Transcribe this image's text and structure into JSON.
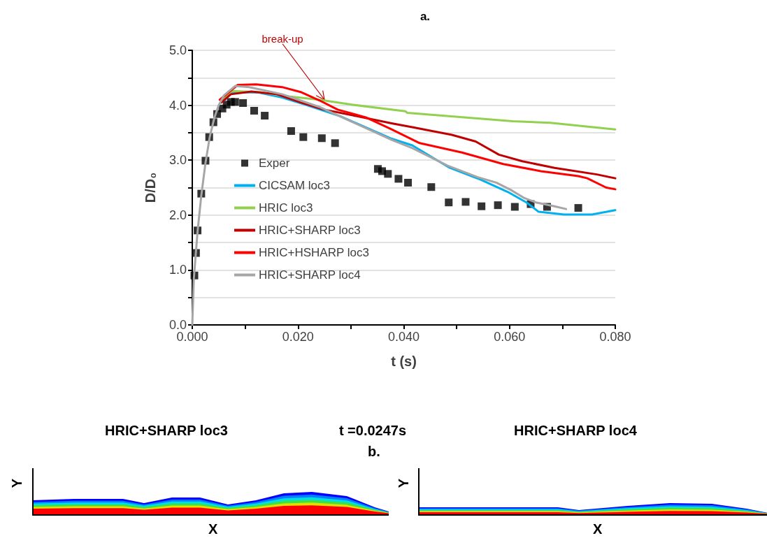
{
  "chart_data": {
    "type": "line",
    "title": "a.",
    "xlabel": "t (s)",
    "ylabel": "D/D₀",
    "xlim": [
      0,
      0.08
    ],
    "xticks": [
      {
        "value": 0,
        "label": "0.000"
      },
      {
        "value": 0.01,
        "label": null
      },
      {
        "value": 0.02,
        "label": "0.020"
      },
      {
        "value": 0.03,
        "label": null
      },
      {
        "value": 0.04,
        "label": "0.040"
      },
      {
        "value": 0.05,
        "label": null
      },
      {
        "value": 0.06,
        "label": "0.060"
      },
      {
        "value": 0.07,
        "label": null
      },
      {
        "value": 0.08,
        "label": "0.080"
      }
    ],
    "ylim": [
      0,
      5
    ],
    "yticks": [
      {
        "value": 0,
        "label": "0.0"
      },
      {
        "value": 0.5,
        "label": null
      },
      {
        "value": 1,
        "label": "1.0"
      },
      {
        "value": 1.5,
        "label": null
      },
      {
        "value": 2,
        "label": "2.0"
      },
      {
        "value": 2.5,
        "label": null
      },
      {
        "value": 3,
        "label": "3.0"
      },
      {
        "value": 3.5,
        "label": null
      },
      {
        "value": 4,
        "label": "4.0"
      },
      {
        "value": 4.5,
        "label": null
      },
      {
        "value": 5,
        "label": "5.0"
      }
    ],
    "grid": "y",
    "legend": "left",
    "marker": "none",
    "line_style": "solid",
    "series": [
      {
        "name": "Exper",
        "type": "scatter",
        "marker": "square",
        "color": "#000000",
        "x": [
          0.0004,
          0.0007,
          0.001,
          0.0017,
          0.0025,
          0.0032,
          0.004,
          0.0047,
          0.0057,
          0.0065,
          0.0073,
          0.0081,
          0.0096,
          0.0117,
          0.0137,
          0.0187,
          0.021,
          0.0245,
          0.027,
          0.0351,
          0.0359,
          0.037,
          0.039,
          0.0408,
          0.0452,
          0.0485,
          0.0517,
          0.0547,
          0.0578,
          0.061,
          0.064,
          0.0671,
          0.073
        ],
        "values": [
          0.9,
          1.31,
          1.72,
          2.39,
          2.99,
          3.42,
          3.69,
          3.84,
          3.94,
          4.01,
          4.06,
          4.06,
          4.04,
          3.9,
          3.81,
          3.53,
          3.42,
          3.4,
          3.31,
          2.84,
          2.8,
          2.75,
          2.66,
          2.59,
          2.51,
          2.23,
          2.24,
          2.16,
          2.18,
          2.15,
          2.2,
          2.15,
          2.13
        ]
      },
      {
        "name": "CICSAM loc3",
        "color": "#00b0f0",
        "x": [
          0.0062,
          0.0075,
          0.0126,
          0.017,
          0.0214,
          0.028,
          0.0377,
          0.0416,
          0.0487,
          0.0544,
          0.0597,
          0.0632,
          0.0655,
          0.0703,
          0.0756,
          0.08
        ],
        "values": [
          4.1,
          4.24,
          4.23,
          4.14,
          4.01,
          3.8,
          3.39,
          3.27,
          2.86,
          2.65,
          2.42,
          2.23,
          2.06,
          2.01,
          2.01,
          2.09
        ]
      },
      {
        "name": "HRIC loc3",
        "color": "#92d050",
        "x": [
          0.0058,
          0.0075,
          0.0126,
          0.0183,
          0.024,
          0.0302,
          0.0403,
          0.0407,
          0.0606,
          0.0677,
          0.08
        ],
        "values": [
          4.1,
          4.26,
          4.24,
          4.16,
          4.1,
          4.01,
          3.89,
          3.86,
          3.71,
          3.68,
          3.56
        ]
      },
      {
        "name": "HRIC+SHARP loc3",
        "color": "#c00000",
        "x": [
          0.0055,
          0.0073,
          0.0112,
          0.016,
          0.0205,
          0.0249,
          0.0302,
          0.0377,
          0.0416,
          0.0491,
          0.0536,
          0.058,
          0.0624,
          0.0685,
          0.0765,
          0.08
        ],
        "values": [
          4.05,
          4.2,
          4.25,
          4.2,
          4.05,
          3.92,
          3.82,
          3.67,
          3.6,
          3.46,
          3.34,
          3.1,
          2.98,
          2.86,
          2.74,
          2.67
        ]
      },
      {
        "name": "HRIC+HSHARP loc3",
        "color": "#ff0000",
        "x": [
          0.0052,
          0.0086,
          0.0121,
          0.017,
          0.0205,
          0.024,
          0.0275,
          0.0328,
          0.0377,
          0.043,
          0.051,
          0.0588,
          0.0659,
          0.073,
          0.0747,
          0.0783,
          0.08
        ],
        "values": [
          4.1,
          4.37,
          4.38,
          4.33,
          4.24,
          4.09,
          3.92,
          3.78,
          3.56,
          3.31,
          3.14,
          2.93,
          2.8,
          2.71,
          2.67,
          2.5,
          2.47
        ]
      },
      {
        "name": "HRIC+SHARP loc4",
        "color": "#a6a6a6",
        "x": [
          0,
          0.0003,
          0.001,
          0.0017,
          0.0025,
          0.0033,
          0.0042,
          0.005,
          0.006,
          0.0081,
          0.0108,
          0.017,
          0.024,
          0.0377,
          0.0416,
          0.0483,
          0.054,
          0.0575,
          0.0602,
          0.0628,
          0.065,
          0.0685,
          0.0707
        ],
        "values": [
          0,
          0.85,
          1.7,
          2.35,
          2.95,
          3.42,
          3.78,
          4.0,
          4.18,
          4.35,
          4.33,
          4.2,
          3.97,
          3.37,
          3.22,
          2.9,
          2.69,
          2.59,
          2.46,
          2.31,
          2.23,
          2.16,
          2.11
        ]
      }
    ],
    "annotations": [
      {
        "text": "break-up",
        "x": 0.025,
        "y": 4.1
      },
      "HRIC+SHARP loc3",
      "t =0.0247s",
      "HRIC+SHARP loc4",
      "b.",
      "Y",
      "X",
      "Y",
      "X"
    ]
  }
}
